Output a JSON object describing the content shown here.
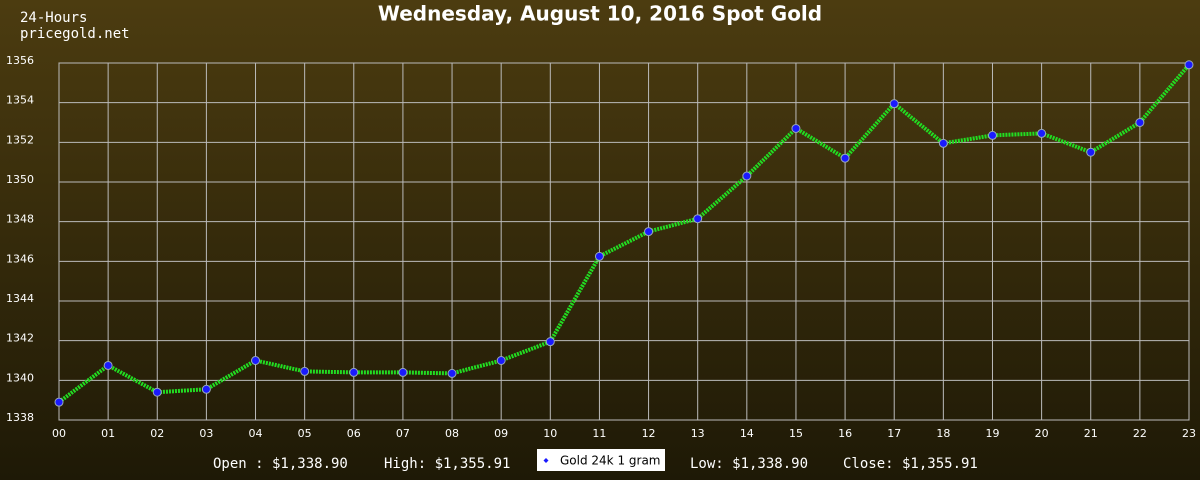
{
  "chart_data": {
    "type": "line",
    "title": "Wednesday, August 10, 2016 Spot Gold",
    "header": [
      "24-Hours",
      "pricegold.net"
    ],
    "categories": [
      "00",
      "01",
      "02",
      "03",
      "04",
      "05",
      "06",
      "07",
      "08",
      "09",
      "10",
      "11",
      "12",
      "13",
      "14",
      "15",
      "16",
      "17",
      "18",
      "19",
      "20",
      "21",
      "22",
      "23"
    ],
    "series": [
      {
        "name": "Gold 24k 1 gram",
        "color": "#22dd22",
        "marker_color": "#1a1aff",
        "values": [
          1338.9,
          1340.75,
          1339.4,
          1339.55,
          1341.0,
          1340.45,
          1340.4,
          1340.4,
          1340.35,
          1341.0,
          1341.95,
          1346.25,
          1347.5,
          1348.15,
          1350.3,
          1352.7,
          1351.2,
          1353.95,
          1351.95,
          1352.35,
          1352.45,
          1351.5,
          1353.0,
          1355.91
        ]
      }
    ],
    "ylim": [
      1338,
      1356
    ],
    "yticks": [
      1338,
      1340,
      1342,
      1344,
      1346,
      1348,
      1350,
      1352,
      1354,
      1356
    ],
    "grid": true,
    "stats": [
      "Open : $1,338.90",
      "High: $1,355.91",
      "Low: $1,338.90",
      "Close: $1,355.91"
    ]
  }
}
